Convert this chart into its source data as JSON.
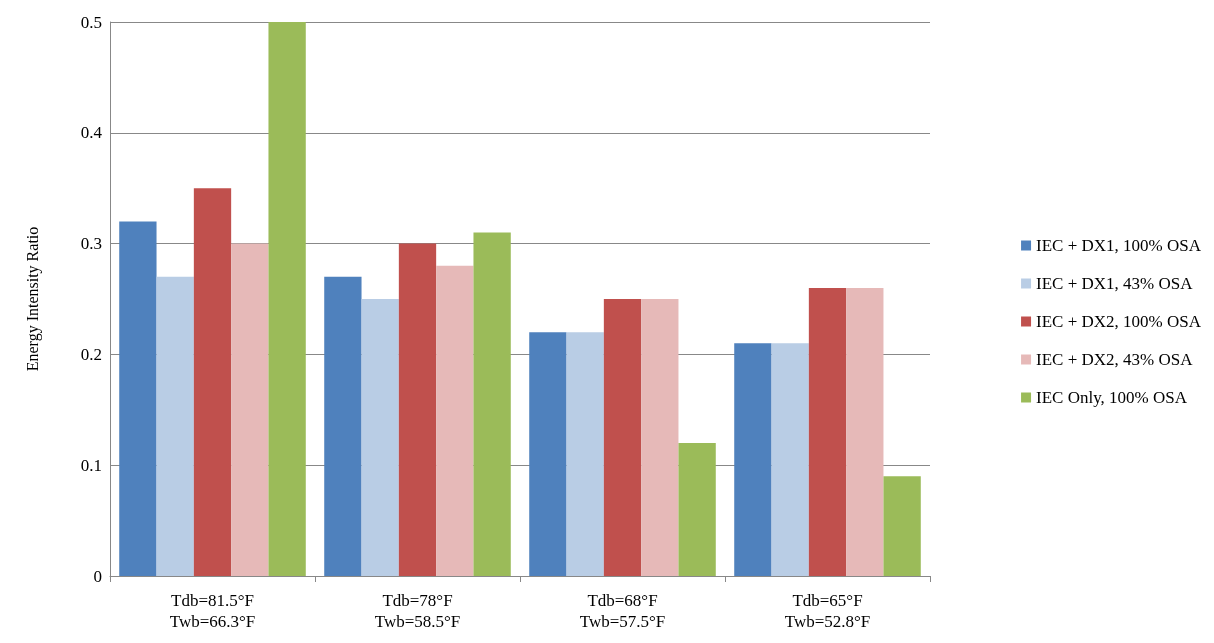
{
  "chart_data": {
    "type": "bar",
    "ylabel": "Energy Intensity Ratio",
    "categories": [
      "Tdb=81.5°F\nTwb=66.3°F",
      "Tdb=78°F\nTwb=58.5°F",
      "Tdb=68°F\nTwb=57.5°F",
      "Tdb=65°F\nTwb=52.8°F"
    ],
    "series": [
      {
        "name": "IEC + DX1, 100% OSA",
        "color": "#4f81bd",
        "values": [
          0.32,
          0.27,
          0.22,
          0.21
        ]
      },
      {
        "name": "IEC + DX1, 43% OSA",
        "color": "#b9cde5",
        "values": [
          0.27,
          0.25,
          0.22,
          0.21
        ]
      },
      {
        "name": "IEC + DX2, 100% OSA",
        "color": "#c0504d",
        "values": [
          0.35,
          0.3,
          0.25,
          0.26
        ]
      },
      {
        "name": "IEC + DX2, 43% OSA",
        "color": "#e6b9b8",
        "values": [
          0.3,
          0.28,
          0.25,
          0.26
        ]
      },
      {
        "name": "IEC Only, 100% OSA",
        "color": "#9bbb59",
        "values": [
          0.5,
          0.31,
          0.12,
          0.09
        ]
      }
    ],
    "ylim": [
      0,
      0.5
    ],
    "yticks": [
      0,
      0.1,
      0.2,
      0.3,
      0.4,
      0.5
    ],
    "grid": "y",
    "legend": "right"
  }
}
